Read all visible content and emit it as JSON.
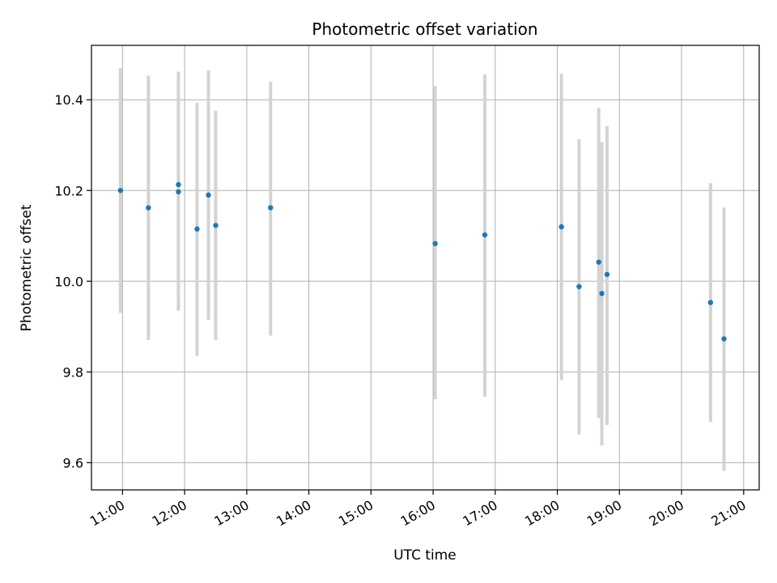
{
  "chart_data": {
    "type": "scatter",
    "title": "Photometric offset variation",
    "xlabel": "UTC time",
    "ylabel": "Photometric offset",
    "xlim": [
      "10:30",
      "21:15"
    ],
    "ylim": [
      9.54,
      10.52
    ],
    "x_ticks": [
      "11:00",
      "12:00",
      "13:00",
      "14:00",
      "15:00",
      "16:00",
      "17:00",
      "18:00",
      "19:00",
      "20:00",
      "21:00"
    ],
    "y_ticks": [
      "9.6",
      "9.8",
      "10.0",
      "10.2",
      "10.4"
    ],
    "grid": true,
    "error_bar_color": "#d3d3d3",
    "point_color": "#1f77b4",
    "series": [
      {
        "points": [
          {
            "x": "10:58",
            "y": 10.2,
            "ymin": 9.93,
            "ymax": 10.47
          },
          {
            "x": "11:25",
            "y": 10.162,
            "ymin": 9.87,
            "ymax": 10.453
          },
          {
            "x": "11:54",
            "y": 10.213,
            "ymin": 9.965,
            "ymax": 10.462
          },
          {
            "x": "11:54",
            "y": 10.197,
            "ymin": 9.935,
            "ymax": 10.46
          },
          {
            "x": "12:12",
            "y": 10.115,
            "ymin": 9.835,
            "ymax": 10.393
          },
          {
            "x": "12:23",
            "y": 10.19,
            "ymin": 9.915,
            "ymax": 10.465
          },
          {
            "x": "12:30",
            "y": 10.123,
            "ymin": 9.87,
            "ymax": 10.376
          },
          {
            "x": "13:23",
            "y": 10.162,
            "ymin": 9.88,
            "ymax": 10.44
          },
          {
            "x": "16:02",
            "y": 10.083,
            "ymin": 9.74,
            "ymax": 10.43
          },
          {
            "x": "16:50",
            "y": 10.102,
            "ymin": 9.745,
            "ymax": 10.456
          },
          {
            "x": "18:04",
            "y": 10.12,
            "ymin": 9.782,
            "ymax": 10.457
          },
          {
            "x": "18:21",
            "y": 9.988,
            "ymin": 9.662,
            "ymax": 10.313
          },
          {
            "x": "18:40",
            "y": 10.042,
            "ymin": 9.698,
            "ymax": 10.382
          },
          {
            "x": "18:43",
            "y": 9.973,
            "ymin": 9.638,
            "ymax": 10.307
          },
          {
            "x": "18:48",
            "y": 10.015,
            "ymin": 9.683,
            "ymax": 10.342
          },
          {
            "x": "20:28",
            "y": 9.953,
            "ymin": 9.69,
            "ymax": 10.216
          },
          {
            "x": "20:41",
            "y": 9.873,
            "ymin": 9.582,
            "ymax": 10.162
          }
        ]
      }
    ]
  }
}
